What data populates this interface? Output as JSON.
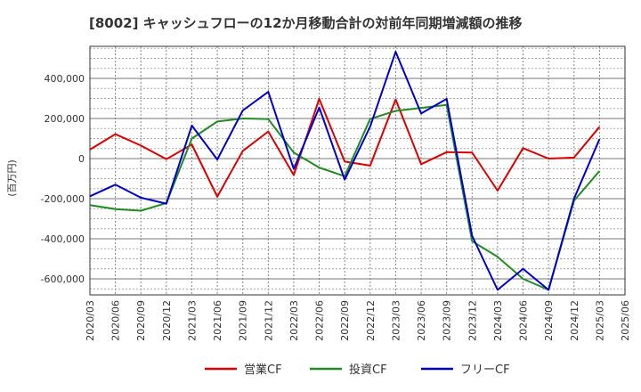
{
  "chart_data": {
    "type": "line",
    "title": "[8002]  キャッシュフローの12か月移動合計の対前年同期増減額の推移",
    "ylabel": "(百万円)",
    "xlabel": "",
    "ylim": [
      -680000,
      560000
    ],
    "yticks": [
      -600000,
      -400000,
      -200000,
      0,
      200000,
      400000
    ],
    "ytick_labels": [
      "-600,000",
      "-400,000",
      "-200,000",
      "0",
      "200,000",
      "400,000"
    ],
    "x": [
      "2020/03",
      "2020/06",
      "2020/09",
      "2020/12",
      "2021/03",
      "2021/06",
      "2021/09",
      "2021/12",
      "2022/03",
      "2022/06",
      "2022/09",
      "2022/12",
      "2023/03",
      "2023/06",
      "2023/09",
      "2023/12",
      "2024/03",
      "2024/06",
      "2024/09",
      "2024/12",
      "2025/03",
      "2025/06"
    ],
    "grid": true,
    "legend_position": "bottom",
    "series": [
      {
        "name": "営業CF",
        "color": "#dd0000",
        "values": [
          45000,
          122000,
          65000,
          -3000,
          70000,
          -190000,
          38000,
          135000,
          -82000,
          298000,
          -15000,
          -35000,
          295000,
          -28000,
          32000,
          30000,
          -160000,
          52000,
          0,
          5000,
          158000,
          null
        ]
      },
      {
        "name": "投資CF",
        "color": "#228B22",
        "values": [
          -232000,
          -252000,
          -260000,
          -222000,
          100000,
          185000,
          200000,
          197000,
          30000,
          -45000,
          -88000,
          198000,
          238000,
          253000,
          268000,
          -412000,
          -490000,
          -600000,
          -655000,
          -210000,
          -62000,
          null
        ]
      },
      {
        "name": "フリーCF",
        "color": "#0000cc",
        "values": [
          -188000,
          -130000,
          -195000,
          -225000,
          165000,
          -5000,
          240000,
          333000,
          -52000,
          255000,
          -105000,
          160000,
          533000,
          225000,
          298000,
          -385000,
          -655000,
          -550000,
          -655000,
          -200000,
          97000,
          null
        ]
      }
    ]
  }
}
